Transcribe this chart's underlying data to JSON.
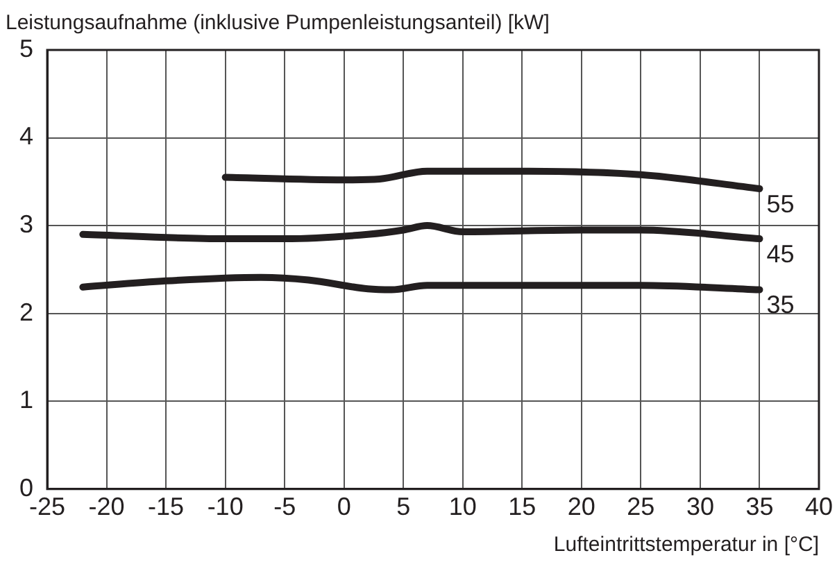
{
  "chart_data": {
    "type": "line",
    "title": "Leistungsaufnahme (inklusive Pumpenleistungsanteil) [kW]",
    "xlabel": "Lufteintrittstemperatur in [°C]",
    "xlim": [
      -25,
      40
    ],
    "xticks": [
      -25,
      -20,
      -15,
      -10,
      -5,
      0,
      5,
      10,
      15,
      20,
      25,
      30,
      35,
      40
    ],
    "ylim": [
      0,
      5
    ],
    "yticks": [
      0,
      1,
      2,
      3,
      4,
      5
    ],
    "grid": true,
    "legend": false,
    "marker": "none",
    "line_style": "solid",
    "series": [
      {
        "name": "55",
        "color": "#231f20",
        "x": [
          -10,
          0,
          3,
          7,
          15,
          25,
          35
        ],
        "values": [
          3.55,
          3.52,
          3.53,
          3.62,
          3.62,
          3.58,
          3.42
        ]
      },
      {
        "name": "45",
        "color": "#231f20",
        "x": [
          -22,
          -10,
          -5,
          2,
          5,
          7,
          10,
          20,
          25,
          35
        ],
        "values": [
          2.9,
          2.85,
          2.85,
          2.9,
          2.95,
          3.0,
          2.93,
          2.95,
          2.95,
          2.85
        ]
      },
      {
        "name": "35",
        "color": "#231f20",
        "x": [
          -22,
          -15,
          -7,
          -3,
          2,
          4,
          7,
          25,
          35
        ],
        "values": [
          2.3,
          2.37,
          2.41,
          2.38,
          2.28,
          2.27,
          2.32,
          2.32,
          2.27
        ]
      }
    ]
  }
}
